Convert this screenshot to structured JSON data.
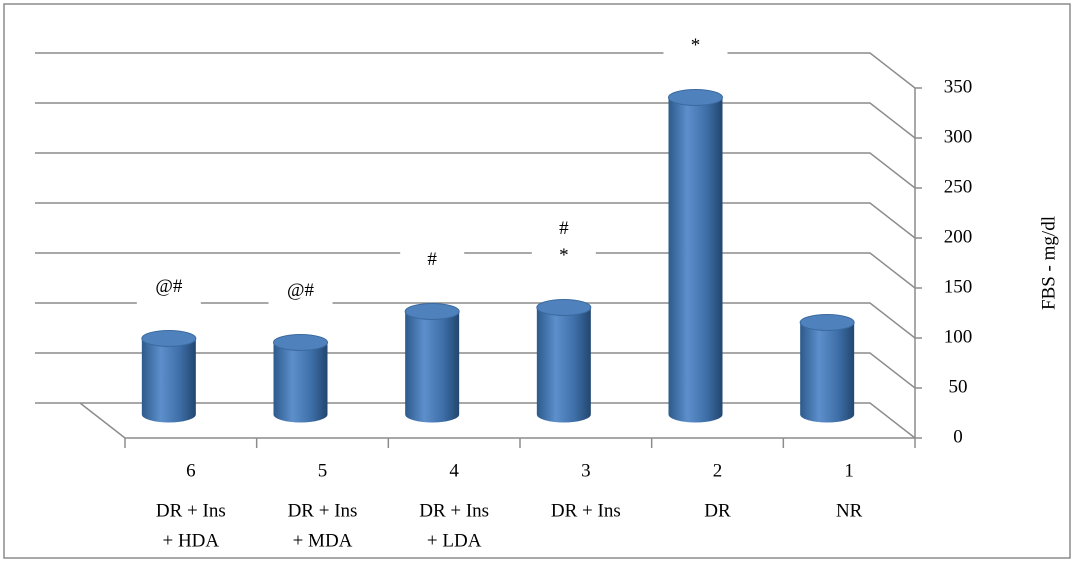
{
  "chart_data": {
    "type": "bar3d",
    "y_label": "FBS - mg/dl",
    "categories": [
      "6",
      "5",
      "4",
      "3",
      "2",
      "1"
    ],
    "sublabels": [
      [
        "DR + Ins",
        "+ HDA"
      ],
      [
        "DR + Ins",
        "+ MDA"
      ],
      [
        "DR + Ins",
        "+ LDA"
      ],
      [
        "DR + Ins"
      ],
      [
        "DR"
      ],
      [
        "NR"
      ]
    ],
    "values": [
      76,
      72,
      103,
      107,
      317,
      92
    ],
    "annotations": [
      [
        "@#"
      ],
      [
        "@#"
      ],
      [
        "#"
      ],
      [
        "#",
        "*"
      ],
      [
        "*"
      ],
      null
    ],
    "color": "#4f81bd",
    "ylim": [
      0,
      350
    ],
    "yticks": [
      0,
      50,
      100,
      150,
      200,
      250,
      300,
      350
    ],
    "grid": true
  }
}
